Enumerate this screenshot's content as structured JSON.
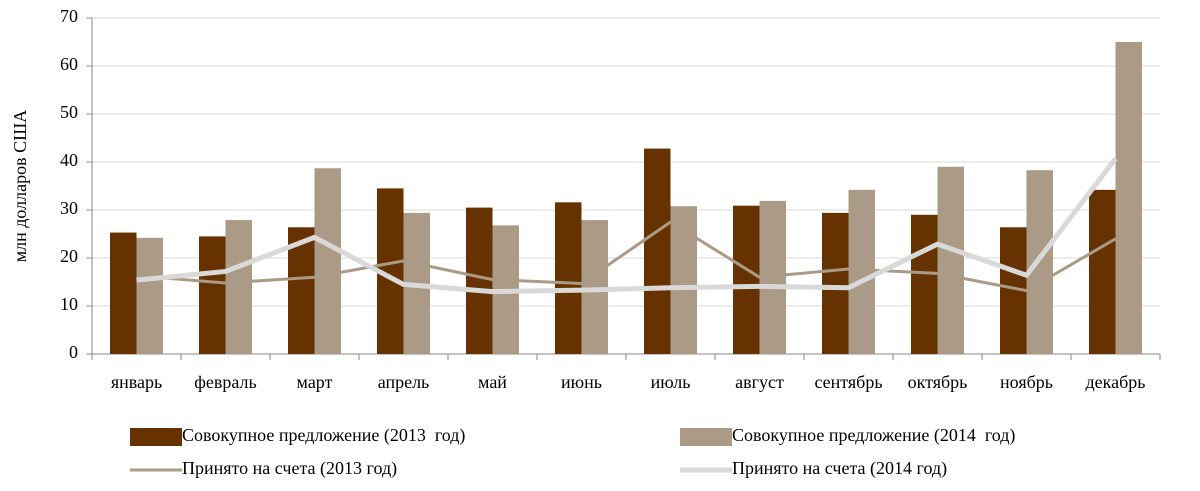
{
  "chart_data": {
    "type": "bar_line",
    "y_label": "млн долларов США",
    "categories": [
      "январь",
      "февраль",
      "март",
      "апрель",
      "май",
      "июнь",
      "июль",
      "август",
      "сентябрь",
      "октябрь",
      "ноябрь",
      "декабрь"
    ],
    "series": [
      {
        "name": "Совокупное предложение (2013  год)",
        "type": "bar",
        "color": "#663300",
        "values": [
          25.3,
          24.5,
          26.4,
          34.5,
          30.5,
          31.6,
          42.8,
          30.9,
          29.4,
          29,
          26.4,
          34.2
        ]
      },
      {
        "name": "Совокупное предложение (2014  год)",
        "type": "bar",
        "color": "#ab9b86",
        "values": [
          24.2,
          27.9,
          38.7,
          29.4,
          26.8,
          27.9,
          30.8,
          31.9,
          34.2,
          39,
          38.3,
          65
        ]
      },
      {
        "name": "Принято на счета (2013 год)",
        "type": "line",
        "color": "#ab9b86",
        "values": [
          16.3,
          14.8,
          16,
          19.4,
          15.5,
          14.7,
          27.5,
          16,
          17.7,
          16.8,
          13.2,
          24
        ]
      },
      {
        "name": "Принято на счета (2014 год)",
        "type": "line",
        "color": "#d9d9d9",
        "values": [
          15.4,
          17.2,
          24.3,
          14.5,
          13,
          13.3,
          13.8,
          14.1,
          13.8,
          22.9,
          16.4,
          40.7
        ]
      }
    ],
    "ylim": [
      0,
      70
    ],
    "yticks": [
      0,
      10,
      20,
      30,
      40,
      50,
      60,
      70
    ],
    "grid": true
  }
}
